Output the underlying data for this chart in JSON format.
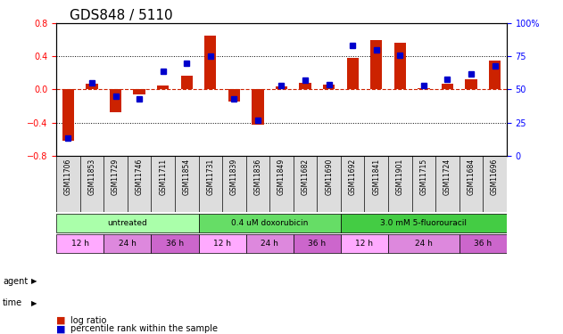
{
  "title": "GDS848 / 5110",
  "samples": [
    "GSM11706",
    "GSM11853",
    "GSM11729",
    "GSM11746",
    "GSM11711",
    "GSM11854",
    "GSM11731",
    "GSM11839",
    "GSM11836",
    "GSM11849",
    "GSM11682",
    "GSM11690",
    "GSM11692",
    "GSM11841",
    "GSM11901",
    "GSM11715",
    "GSM11724",
    "GSM11684",
    "GSM11696"
  ],
  "log_ratio": [
    -0.62,
    0.07,
    -0.28,
    -0.06,
    0.05,
    0.17,
    0.65,
    -0.15,
    -0.43,
    0.04,
    0.08,
    0.06,
    0.38,
    0.6,
    0.57,
    0.02,
    0.07,
    0.12,
    0.35
  ],
  "percentile": [
    13,
    55,
    45,
    43,
    64,
    70,
    75,
    43,
    27,
    53,
    57,
    54,
    83,
    80,
    76,
    53,
    58,
    62,
    68
  ],
  "bar_color": "#cc2200",
  "dot_color": "#0000cc",
  "ylim_left": [
    -0.8,
    0.8
  ],
  "ylim_right": [
    0,
    100
  ],
  "yticks_left": [
    -0.8,
    -0.4,
    0.0,
    0.4,
    0.8
  ],
  "yticks_right": [
    0,
    25,
    50,
    75,
    100
  ],
  "hline_y_left": [
    0.4,
    0.0,
    -0.4
  ],
  "hline_zero_color": "#cc2200",
  "hline_dotted_color": "black",
  "agent_groups": [
    {
      "label": "untreated",
      "start": 0,
      "end": 6,
      "color": "#aaffaa"
    },
    {
      "label": "0.4 uM doxorubicin",
      "start": 6,
      "end": 12,
      "color": "#66dd66"
    },
    {
      "label": "3.0 mM 5-fluorouracil",
      "start": 12,
      "end": 19,
      "color": "#44cc44"
    }
  ],
  "time_groups": [
    {
      "label": "12 h",
      "start": 0,
      "end": 2,
      "color": "#ffaaff"
    },
    {
      "label": "24 h",
      "start": 2,
      "end": 4,
      "color": "#dd88dd"
    },
    {
      "label": "36 h",
      "start": 4,
      "end": 6,
      "color": "#cc66cc"
    },
    {
      "label": "12 h",
      "start": 6,
      "end": 8,
      "color": "#ffaaff"
    },
    {
      "label": "24 h",
      "start": 8,
      "end": 10,
      "color": "#dd88dd"
    },
    {
      "label": "36 h",
      "start": 10,
      "end": 12,
      "color": "#cc66cc"
    },
    {
      "label": "12 h",
      "start": 12,
      "end": 14,
      "color": "#ffaaff"
    },
    {
      "label": "24 h",
      "start": 14,
      "end": 17,
      "color": "#dd88dd"
    },
    {
      "label": "36 h",
      "start": 17,
      "end": 19,
      "color": "#cc66cc"
    }
  ],
  "legend_items": [
    {
      "label": "log ratio",
      "color": "#cc2200"
    },
    {
      "label": "percentile rank within the sample",
      "color": "#0000cc"
    }
  ],
  "background_color": "white",
  "plot_bg_color": "white",
  "title_fontsize": 11,
  "tick_fontsize": 7,
  "bar_width": 0.5
}
